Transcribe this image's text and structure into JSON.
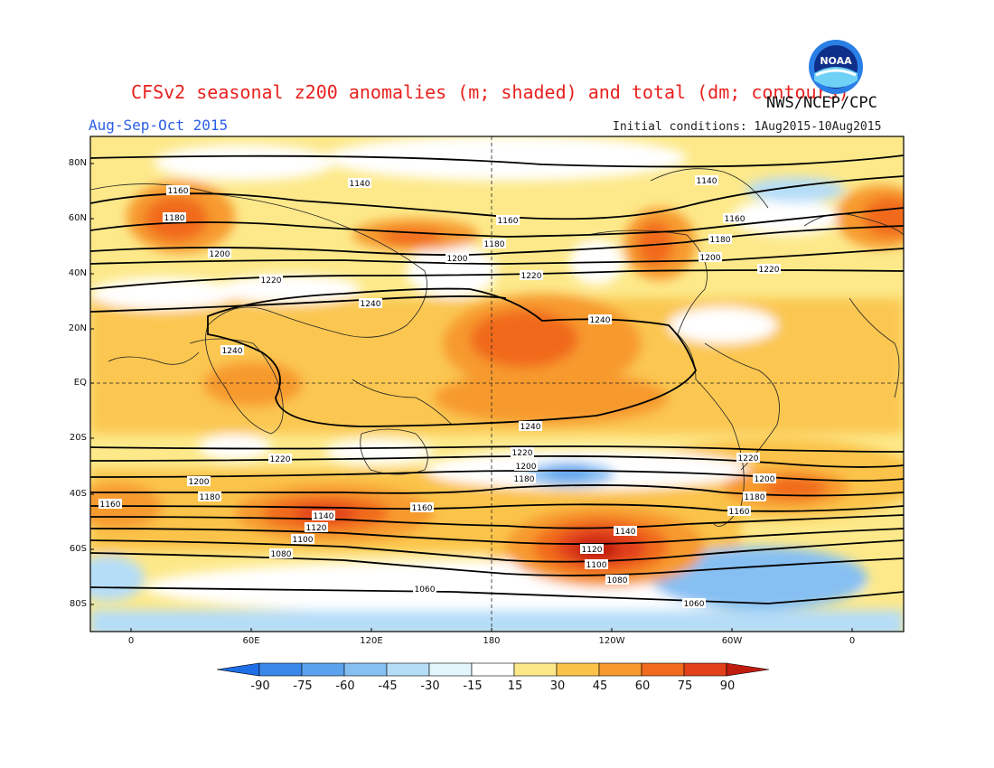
{
  "header": {
    "title": "CFSv2 seasonal z200 anomalies (m; shaded) and total (dm; contours)",
    "agency": "NWS/NCEP/CPC",
    "logo_text": "NOAA",
    "season": "Aug-Sep-Oct 2015",
    "initial_conditions": "Initial conditions: 1Aug2015-10Aug2015"
  },
  "axes": {
    "lat_labels": [
      "80N",
      "60N",
      "40N",
      "20N",
      "EQ",
      "20S",
      "40S",
      "60S",
      "80S"
    ],
    "lon_labels": [
      "0",
      "60E",
      "120E",
      "180",
      "120W",
      "60W",
      "0"
    ]
  },
  "colorbar": {
    "labels": [
      "-90",
      "-75",
      "-60",
      "-45",
      "-30",
      "-15",
      "15",
      "30",
      "45",
      "60",
      "75",
      "90"
    ],
    "colors": [
      "#1e6ee6",
      "#3a88ea",
      "#5ba2ee",
      "#86c0f3",
      "#b5ddf8",
      "#e2f6fb",
      "#ffffff",
      "#fde98a",
      "#fbc34a",
      "#f79a2e",
      "#f16b1e",
      "#e1401a",
      "#c01c10"
    ]
  },
  "contour_labels": [
    {
      "text": "1140"
    },
    {
      "text": "1140"
    },
    {
      "text": "1160"
    },
    {
      "text": "1160"
    },
    {
      "text": "1160"
    },
    {
      "text": "1180"
    },
    {
      "text": "1180"
    },
    {
      "text": "1180"
    },
    {
      "text": "1200"
    },
    {
      "text": "1200"
    },
    {
      "text": "1200"
    },
    {
      "text": "1220"
    },
    {
      "text": "1220"
    },
    {
      "text": "1220"
    },
    {
      "text": "1240"
    },
    {
      "text": "1240"
    },
    {
      "text": "1240"
    },
    {
      "text": "1240"
    },
    {
      "text": "1220"
    },
    {
      "text": "1220"
    },
    {
      "text": "1220"
    },
    {
      "text": "1200"
    },
    {
      "text": "1200"
    },
    {
      "text": "1200"
    },
    {
      "text": "1180"
    },
    {
      "text": "1180"
    },
    {
      "text": "1180"
    },
    {
      "text": "1160"
    },
    {
      "text": "1160"
    },
    {
      "text": "1160"
    },
    {
      "text": "1140"
    },
    {
      "text": "1140"
    },
    {
      "text": "1120"
    },
    {
      "text": "1120"
    },
    {
      "text": "1100"
    },
    {
      "text": "1100"
    },
    {
      "text": "1080"
    },
    {
      "text": "1080"
    },
    {
      "text": "1060"
    },
    {
      "text": "1060"
    }
  ]
}
